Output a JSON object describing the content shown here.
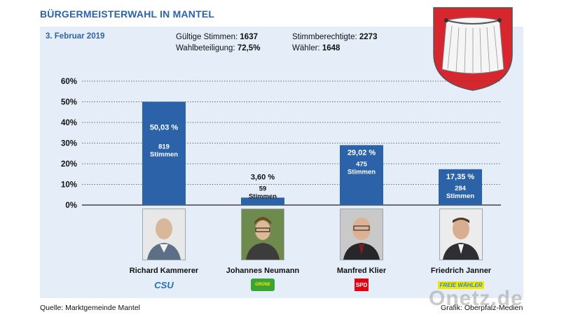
{
  "header": {
    "title": "BÜRGERMEISTERWAHL IN MANTEL",
    "date": "3. Februar 2019"
  },
  "stats": {
    "valid_votes_label": "Gültige Stimmen:",
    "valid_votes_value": "1637",
    "turnout_label": "Wahlbeteiligung:",
    "turnout_value": "72,5%",
    "eligible_label": "Stimmberechtigte:",
    "eligible_value": "2273",
    "voters_label": "Wähler:",
    "voters_value": "1648"
  },
  "colors": {
    "accent": "#2c63a8",
    "bar": "#2c63a8",
    "panel": "#e5eef8"
  },
  "chart_data": {
    "type": "bar",
    "title": "BÜRGERMEISTERWAHL IN MANTEL",
    "xlabel": "",
    "ylabel": "",
    "ylim": [
      0,
      60
    ],
    "yticks": [
      0,
      10,
      20,
      30,
      40,
      50,
      60
    ],
    "ytick_labels": [
      "0%",
      "10%",
      "20%",
      "30%",
      "40%",
      "50%",
      "60%"
    ],
    "grid": true,
    "categories": [
      "Richard Kammerer",
      "Johannes Neumann",
      "Manfred Klier",
      "Friedrich Janner"
    ],
    "values": [
      50.03,
      3.6,
      29.02,
      17.35
    ],
    "value_labels": [
      "50,03 %",
      "3,60 %",
      "29,02 %",
      "17,35 %"
    ],
    "votes": [
      "819",
      "59",
      "475",
      "284"
    ],
    "votes_unit": "Stimmen",
    "parties": [
      "CSU",
      "GRÜNE",
      "SPD",
      "FREIE WÄHLER"
    ]
  },
  "footer": {
    "source": "Quelle: Marktgemeinde Mantel",
    "credit": "Grafik: Oberpfalz-Medien",
    "watermark": "Onetz.de"
  },
  "icons": [
    "coat-of-arms-icon",
    "csu-logo",
    "gruene-logo",
    "spd-logo",
    "freie-waehler-logo",
    "candidate-photo"
  ]
}
